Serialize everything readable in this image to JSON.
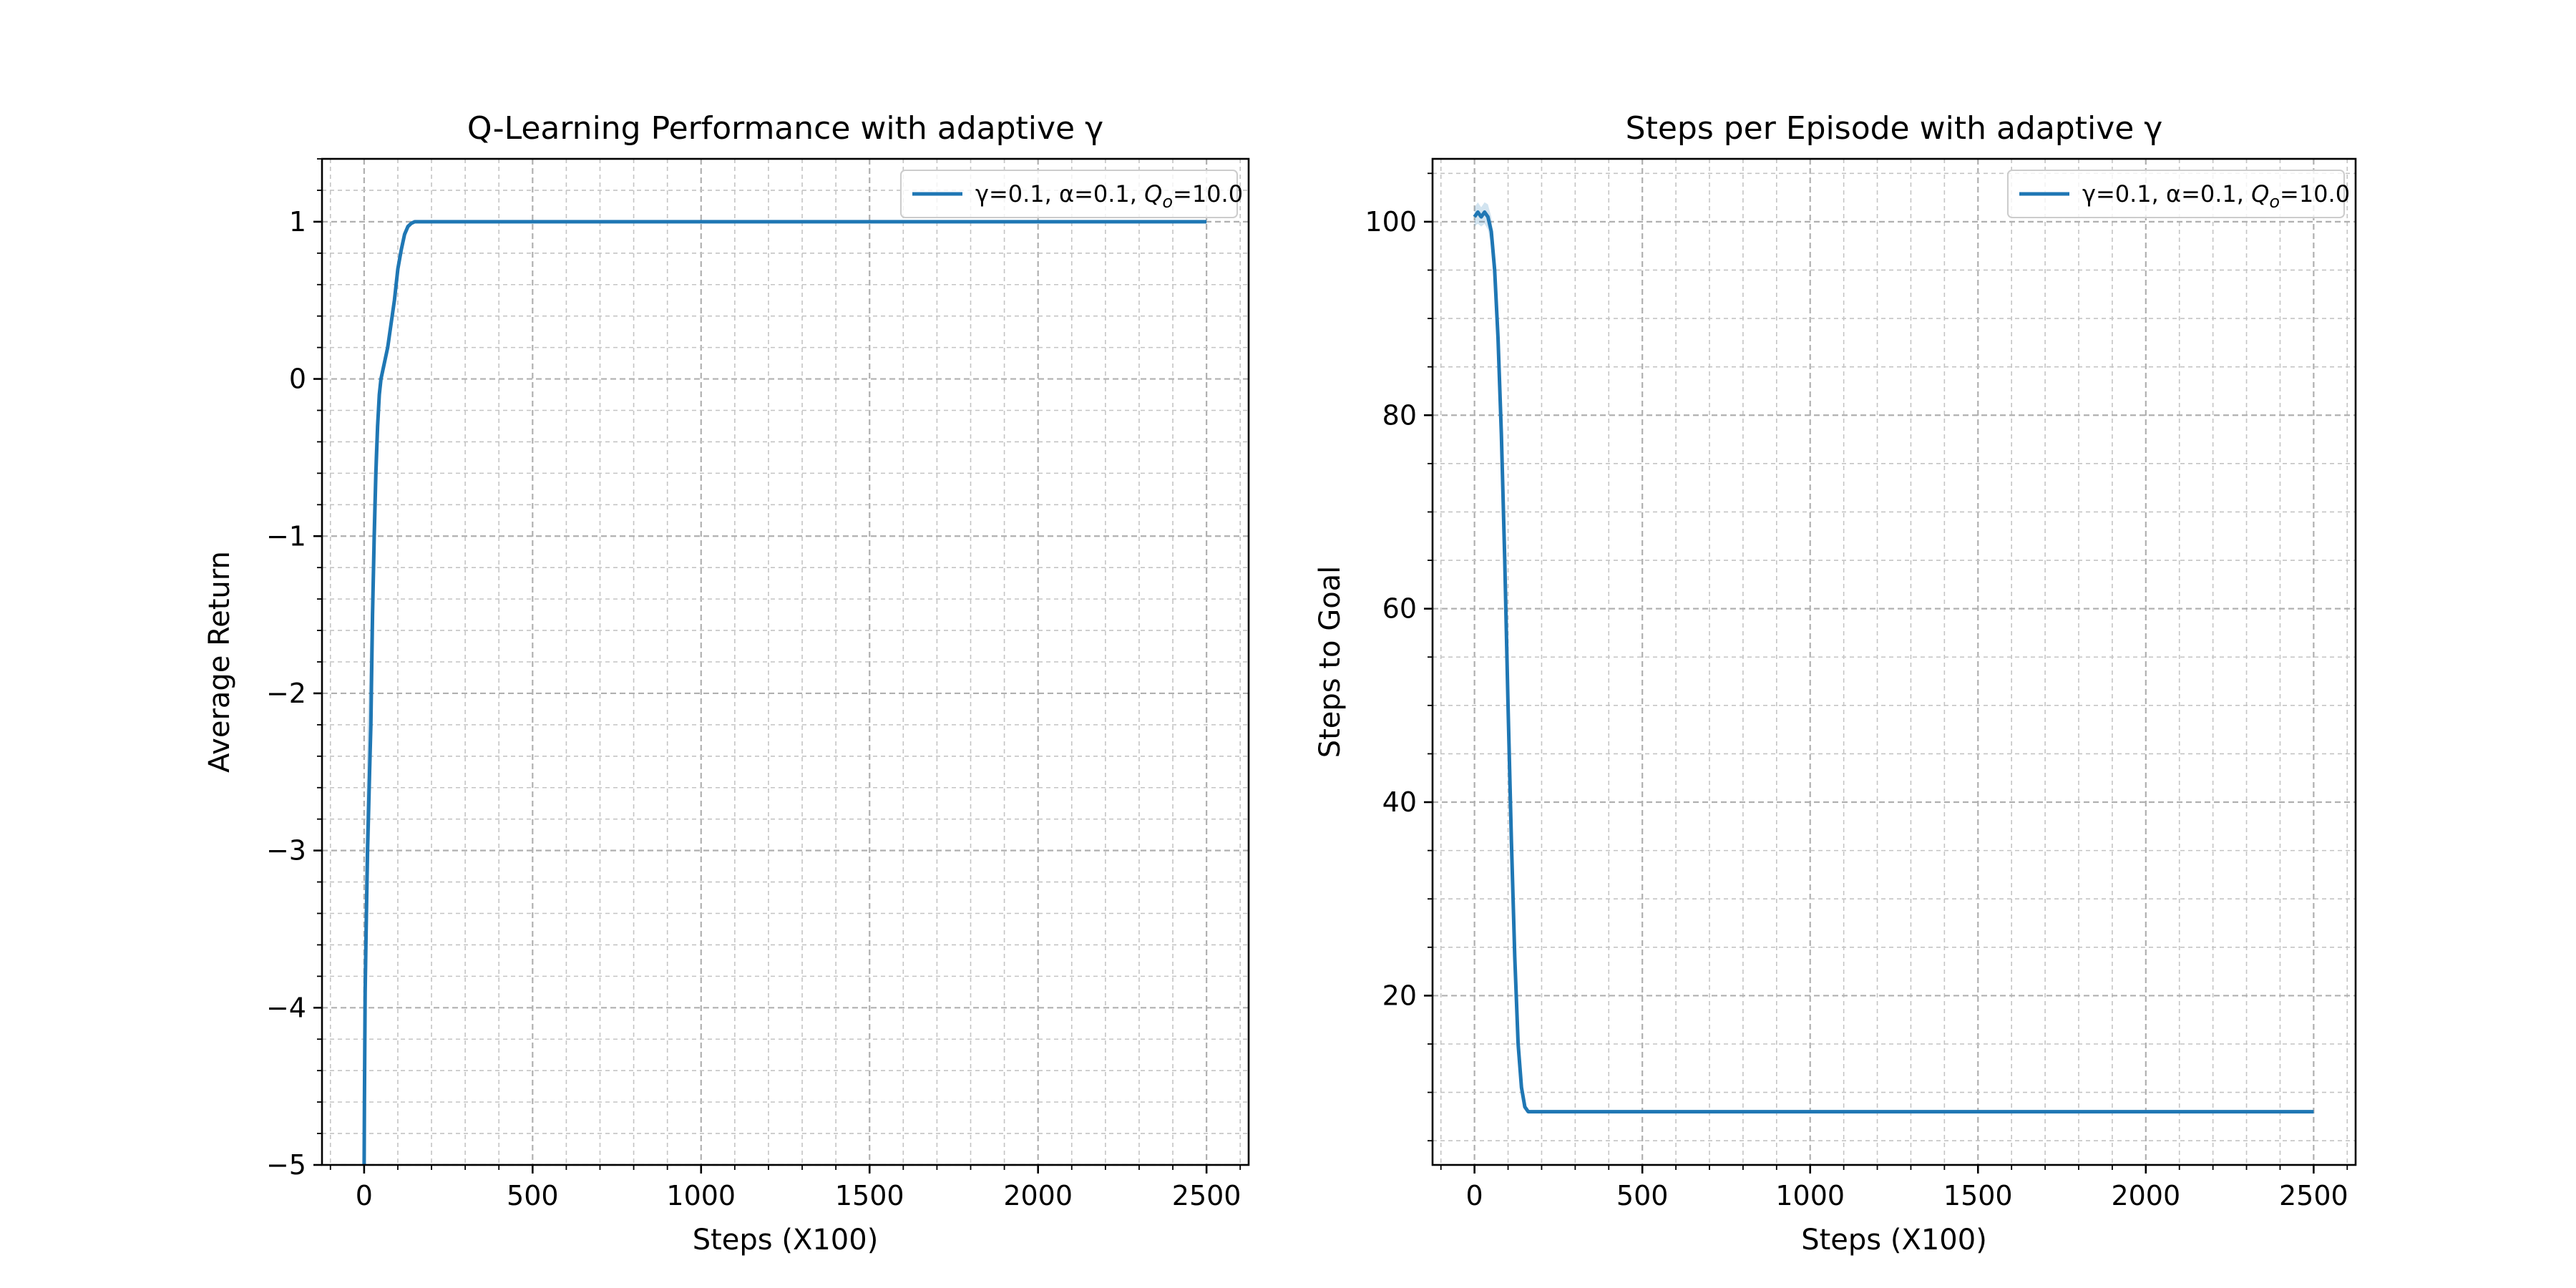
{
  "chart_data": [
    {
      "type": "line",
      "title": "Q-Learning Performance with adaptive γ",
      "xlabel": "Steps (X100)",
      "ylabel": "Average Return",
      "xlim": [
        -125,
        2625
      ],
      "ylim": [
        -5,
        1.4
      ],
      "xticks": [
        0,
        500,
        1000,
        1500,
        2000,
        2500
      ],
      "xtick_labels": [
        "0",
        "500",
        "1000",
        "1500",
        "2000",
        "2500"
      ],
      "yticks": [
        -5,
        -4,
        -3,
        -2,
        -1,
        0,
        1
      ],
      "ytick_labels": [
        "−5",
        "−4",
        "−3",
        "−2",
        "−1",
        "0",
        "1"
      ],
      "grid": true,
      "legend_position": "top-right",
      "series": [
        {
          "name": "γ=0.1, α=0.1, Q_o=10.0",
          "legend_main": "γ=0.1, α=0.1, ",
          "legend_q": "Q",
          "legend_sub": "o",
          "legend_tail": "=10.0",
          "color": "#1f77b4",
          "x": [
            0,
            1,
            3,
            6,
            10,
            15,
            20,
            25,
            30,
            35,
            40,
            45,
            50,
            60,
            70,
            80,
            90,
            100,
            110,
            120,
            130,
            140,
            150,
            170,
            200,
            500,
            1000,
            1500,
            2000,
            2500
          ],
          "y": [
            -5.0,
            -4.6,
            -3.9,
            -3.5,
            -3.0,
            -2.6,
            -2.2,
            -1.5,
            -1.0,
            -0.6,
            -0.3,
            -0.1,
            0.0,
            0.1,
            0.2,
            0.35,
            0.5,
            0.7,
            0.82,
            0.92,
            0.97,
            0.99,
            1.0,
            1.0,
            1.0,
            1.0,
            1.0,
            1.0,
            1.0,
            1.0
          ],
          "band_lower": [
            -5.0,
            -4.9,
            -4.5,
            -4.2,
            -3.6,
            -3.1,
            -2.7,
            -2.0,
            -1.3,
            -0.8,
            -0.4,
            -0.15,
            -0.05,
            0.05,
            0.15,
            0.32,
            0.48,
            0.69,
            0.81,
            0.91,
            0.97,
            0.99,
            1.0,
            1.0,
            1.0,
            1.0,
            1.0,
            1.0,
            1.0,
            1.0
          ],
          "band_upper": [
            -4.6,
            -4.0,
            -3.2,
            -2.8,
            -2.2,
            -1.9,
            -1.5,
            -0.9,
            -0.5,
            -0.3,
            -0.15,
            0.0,
            0.05,
            0.15,
            0.25,
            0.38,
            0.52,
            0.71,
            0.83,
            0.93,
            0.98,
            1.0,
            1.0,
            1.0,
            1.0,
            1.0,
            1.0,
            1.0,
            1.0,
            1.0
          ]
        }
      ]
    },
    {
      "type": "line",
      "title": "Steps per Episode with adaptive γ",
      "xlabel": "Steps (X100)",
      "ylabel": "Steps to Goal",
      "xlim": [
        -125,
        2625
      ],
      "ylim": [
        2.5,
        106.5
      ],
      "xticks": [
        0,
        500,
        1000,
        1500,
        2000,
        2500
      ],
      "xtick_labels": [
        "0",
        "500",
        "1000",
        "1500",
        "2000",
        "2500"
      ],
      "yticks": [
        20,
        40,
        60,
        80,
        100
      ],
      "ytick_labels": [
        "20",
        "40",
        "60",
        "80",
        "100"
      ],
      "grid": true,
      "legend_position": "top-right",
      "series": [
        {
          "name": "γ=0.1, α=0.1, Q_o=10.0",
          "legend_main": "γ=0.1, α=0.1, ",
          "legend_q": "Q",
          "legend_sub": "o",
          "legend_tail": "=10.0",
          "color": "#1f77b4",
          "x": [
            0,
            10,
            20,
            30,
            40,
            50,
            60,
            70,
            80,
            90,
            100,
            110,
            120,
            130,
            140,
            150,
            160,
            170,
            200,
            500,
            1000,
            1500,
            2000,
            2500
          ],
          "y": [
            100.5,
            101.0,
            100.5,
            101.0,
            100.5,
            99.0,
            95.0,
            88.0,
            78.0,
            65.0,
            50.0,
            36.0,
            24.0,
            15.0,
            10.5,
            8.5,
            8.0,
            8.0,
            8.0,
            8.0,
            8.0,
            8.0,
            8.0,
            8.0
          ],
          "band_lower": [
            99.5,
            99.8,
            99.5,
            99.8,
            99.2,
            97.5,
            93.0,
            86.0,
            76.0,
            63.0,
            48.5,
            34.5,
            23.0,
            14.5,
            10.2,
            8.4,
            8.0,
            8.0,
            8.0,
            8.0,
            8.0,
            8.0,
            8.0,
            8.0
          ],
          "band_upper": [
            101.5,
            102.0,
            101.5,
            102.0,
            101.8,
            100.5,
            97.0,
            90.0,
            80.0,
            67.0,
            51.5,
            37.5,
            25.0,
            15.5,
            10.8,
            8.6,
            8.0,
            8.0,
            8.0,
            8.0,
            8.0,
            8.0,
            8.0,
            8.0
          ]
        }
      ]
    }
  ]
}
